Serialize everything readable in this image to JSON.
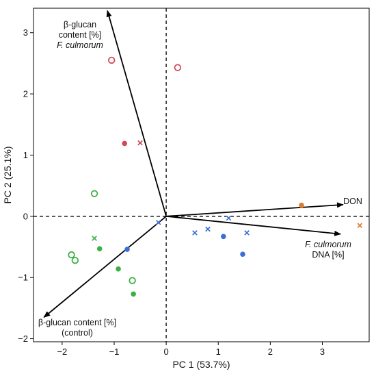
{
  "chart_data": {
    "type": "scatter",
    "xlabel": "PC 1 (53.7%)",
    "ylabel": "PC 2 (25.1%)",
    "xlim": [
      -2.55,
      3.9
    ],
    "ylim": [
      -2.05,
      3.4
    ],
    "xticks": [
      -2,
      -1,
      0,
      1,
      2,
      3
    ],
    "yticks": [
      -2,
      -1,
      0,
      1,
      2,
      3
    ],
    "grid": false,
    "points": [
      {
        "x": -1.05,
        "y": 2.55,
        "marker": "open-circle",
        "color": "#d1495b"
      },
      {
        "x": 0.22,
        "y": 2.43,
        "marker": "open-circle",
        "color": "#d1495b"
      },
      {
        "x": -0.8,
        "y": 1.19,
        "marker": "filled-circle",
        "color": "#d1495b"
      },
      {
        "x": -0.5,
        "y": 1.2,
        "marker": "cross",
        "color": "#d1495b"
      },
      {
        "x": -1.38,
        "y": 0.37,
        "marker": "open-circle",
        "color": "#3cb043"
      },
      {
        "x": -1.38,
        "y": -0.36,
        "marker": "cross",
        "color": "#3cb043"
      },
      {
        "x": -1.28,
        "y": -0.53,
        "marker": "filled-circle",
        "color": "#3cb043"
      },
      {
        "x": -1.82,
        "y": -0.63,
        "marker": "open-circle",
        "color": "#3cb043"
      },
      {
        "x": -1.75,
        "y": -0.72,
        "marker": "open-circle",
        "color": "#3cb043"
      },
      {
        "x": -0.92,
        "y": -0.86,
        "marker": "filled-circle",
        "color": "#3cb043"
      },
      {
        "x": -0.65,
        "y": -1.05,
        "marker": "open-circle",
        "color": "#3cb043"
      },
      {
        "x": -0.63,
        "y": -1.27,
        "marker": "filled-circle",
        "color": "#3cb043"
      },
      {
        "x": -0.75,
        "y": -0.54,
        "marker": "filled-circle",
        "color": "#3a6fd8"
      },
      {
        "x": -0.15,
        "y": -0.1,
        "marker": "cross",
        "color": "#3a6fd8"
      },
      {
        "x": 0.55,
        "y": -0.27,
        "marker": "cross",
        "color": "#3a6fd8"
      },
      {
        "x": 0.8,
        "y": -0.21,
        "marker": "cross",
        "color": "#3a6fd8"
      },
      {
        "x": 1.2,
        "y": -0.03,
        "marker": "cross",
        "color": "#3a6fd8"
      },
      {
        "x": 1.1,
        "y": -0.33,
        "marker": "filled-circle",
        "color": "#3a6fd8"
      },
      {
        "x": 1.55,
        "y": -0.27,
        "marker": "cross",
        "color": "#3a6fd8"
      },
      {
        "x": 1.47,
        "y": -0.62,
        "marker": "filled-circle",
        "color": "#3a6fd8"
      },
      {
        "x": 2.6,
        "y": 0.18,
        "marker": "filled-circle",
        "color": "#e07b28"
      },
      {
        "x": 3.72,
        "y": -0.15,
        "marker": "cross",
        "color": "#e07b28"
      }
    ],
    "loadings": [
      {
        "x_end": -1.13,
        "y_end": 3.36,
        "label_lines": [
          "β-glucan",
          "content [%]",
          "F. culmorum"
        ],
        "italic_line": 2
      },
      {
        "x_end": 3.4,
        "y_end": 0.19,
        "label_lines": [
          "DON"
        ],
        "italic_line": -1
      },
      {
        "x_end": 3.35,
        "y_end": -0.29,
        "label_lines": [
          "F. culmorum",
          "DNA [%]"
        ],
        "italic_line": 0
      },
      {
        "x_end": -2.35,
        "y_end": -1.65,
        "label_lines": [
          "β-glucan content [%]",
          "(control)"
        ],
        "italic_line": -1
      }
    ]
  }
}
